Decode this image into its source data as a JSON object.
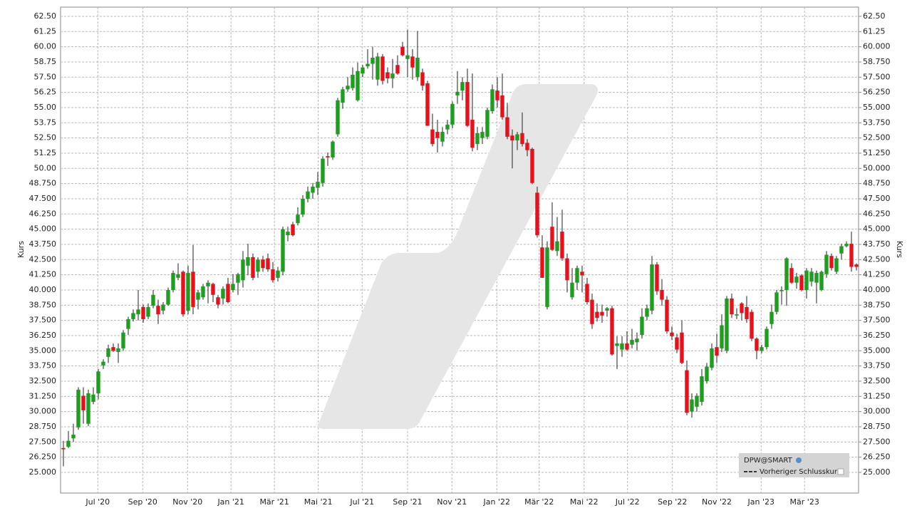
{
  "chart_data": {
    "type": "candlestick",
    "y_label": "Kurs",
    "y2_label": "Kurs",
    "up_color": "#1e9e1e",
    "down_color": "#e8101a",
    "grid": true,
    "legend": {
      "title": "DPW@SMART",
      "line_label": "Vorheriger Schlusskurs"
    },
    "xlim": [
      -0.57,
      159.43
    ],
    "xticks": [
      {
        "value": 6.9,
        "label": "Jul '20"
      },
      {
        "value": 15.9,
        "label": "Sep '20"
      },
      {
        "value": 24.9,
        "label": "Nov '20"
      },
      {
        "value": 33.6,
        "label": "Jan '21"
      },
      {
        "value": 42.3,
        "label": "Mär '21"
      },
      {
        "value": 51.1,
        "label": "Mai '21"
      },
      {
        "value": 59.9,
        "label": "Jul '21"
      },
      {
        "value": 69,
        "label": "Sep '21"
      },
      {
        "value": 77.9,
        "label": "Nov '21"
      },
      {
        "value": 86.9,
        "label": "Jan '22"
      },
      {
        "value": 95.4,
        "label": "Mär '22"
      },
      {
        "value": 104.4,
        "label": "Mai '22"
      },
      {
        "value": 113.1,
        "label": "Jul '22"
      },
      {
        "value": 122.1,
        "label": "Sep '22"
      },
      {
        "value": 131,
        "label": "Nov '22"
      },
      {
        "value": 139.9,
        "label": "Jan '23"
      },
      {
        "value": 148.6,
        "label": "Mär '23"
      }
    ],
    "ylim": [
      23.3,
      63.26
    ],
    "yticks": [
      {
        "value": 62.5,
        "label": "62.50"
      },
      {
        "value": 61.25,
        "label": "61.25"
      },
      {
        "value": 60,
        "label": "60.00"
      },
      {
        "value": 58.75,
        "label": "58.75"
      },
      {
        "value": 57.5,
        "label": "57.50"
      },
      {
        "value": 56.25,
        "label": "56.25"
      },
      {
        "value": 55,
        "label": "55.00"
      },
      {
        "value": 53.75,
        "label": "53.75"
      },
      {
        "value": 52.5,
        "label": "52.50"
      },
      {
        "value": 51.25,
        "label": "51.25"
      },
      {
        "value": 50,
        "label": "50.00"
      },
      {
        "value": 48.75,
        "label": "48.750"
      },
      {
        "value": 47.5,
        "label": "47.500"
      },
      {
        "value": 46.25,
        "label": "46.250"
      },
      {
        "value": 45,
        "label": "45.000"
      },
      {
        "value": 43.75,
        "label": "43.750"
      },
      {
        "value": 42.5,
        "label": "42.500"
      },
      {
        "value": 41.25,
        "label": "41.250"
      },
      {
        "value": 40,
        "label": "40.000"
      },
      {
        "value": 38.75,
        "label": "38.750"
      },
      {
        "value": 37.5,
        "label": "37.500"
      },
      {
        "value": 36.25,
        "label": "36.250"
      },
      {
        "value": 35,
        "label": "35.000"
      },
      {
        "value": 33.75,
        "label": "33.750"
      },
      {
        "value": 32.5,
        "label": "32.500"
      },
      {
        "value": 31.25,
        "label": "31.250"
      },
      {
        "value": 30,
        "label": "30.000"
      },
      {
        "value": 28.75,
        "label": "28.750"
      },
      {
        "value": 27.5,
        "label": "27.500"
      },
      {
        "value": 26.25,
        "label": "26.250"
      },
      {
        "value": 25,
        "label": "25.000"
      }
    ],
    "y2lim": [
      23.3,
      63.26
    ],
    "y2ticks": [
      {
        "value": 62.5,
        "label": "62.50"
      },
      {
        "value": 61.25,
        "label": "61.25"
      },
      {
        "value": 60,
        "label": "60.000"
      },
      {
        "value": 58.75,
        "label": "58.750"
      },
      {
        "value": 57.5,
        "label": "57.500"
      },
      {
        "value": 56.25,
        "label": "56.250"
      },
      {
        "value": 55,
        "label": "55.000"
      },
      {
        "value": 53.75,
        "label": "53.750"
      },
      {
        "value": 52.5,
        "label": "52.500"
      },
      {
        "value": 51.25,
        "label": "51.250"
      },
      {
        "value": 50,
        "label": "50.000"
      },
      {
        "value": 48.75,
        "label": "48.750"
      },
      {
        "value": 47.5,
        "label": "47.500"
      },
      {
        "value": 46.25,
        "label": "46.250"
      },
      {
        "value": 45,
        "label": "45.000"
      },
      {
        "value": 43.75,
        "label": "43.750"
      },
      {
        "value": 42.5,
        "label": "42.500"
      },
      {
        "value": 41.25,
        "label": "41.250"
      },
      {
        "value": 40,
        "label": "40.000"
      },
      {
        "value": 38.75,
        "label": "38.750"
      },
      {
        "value": 37.5,
        "label": "37.500"
      },
      {
        "value": 36.25,
        "label": "36.250"
      },
      {
        "value": 35,
        "label": "35.000"
      },
      {
        "value": 33.75,
        "label": "33.750"
      },
      {
        "value": 32.5,
        "label": "32.500"
      },
      {
        "value": 31.25,
        "label": "31.250"
      },
      {
        "value": 30,
        "label": "30.000"
      },
      {
        "value": 28.75,
        "label": "28.750"
      },
      {
        "value": 27.5,
        "label": "27.500"
      },
      {
        "value": 26.25,
        "label": "26.250"
      },
      {
        "value": 25,
        "label": "25.000"
      }
    ],
    "ohlc": [
      [
        27.0,
        27.6,
        25.5,
        26.9
      ],
      [
        27.1,
        28.4,
        27.0,
        27.6
      ],
      [
        27.8,
        29.0,
        27.5,
        28.1
      ],
      [
        28.7,
        32.0,
        28.5,
        31.8
      ],
      [
        31.3,
        32.0,
        29.0,
        30.1
      ],
      [
        29.0,
        31.8,
        28.8,
        31.5
      ],
      [
        30.8,
        32.0,
        30.6,
        31.4
      ],
      [
        31.5,
        33.5,
        31.0,
        33.3
      ],
      [
        33.8,
        34.3,
        33.5,
        34.1
      ],
      [
        34.5,
        35.5,
        34.0,
        35.2
      ],
      [
        35.3,
        35.6,
        34.9,
        35.0
      ],
      [
        34.9,
        35.6,
        34.0,
        35.2
      ],
      [
        35.2,
        36.7,
        35.0,
        36.5
      ],
      [
        36.8,
        37.8,
        36.3,
        37.6
      ],
      [
        37.6,
        38.4,
        37.4,
        38.1
      ],
      [
        38.0,
        40.0,
        37.5,
        38.4
      ],
      [
        38.6,
        38.8,
        37.3,
        37.6
      ],
      [
        37.8,
        38.9,
        37.6,
        38.6
      ],
      [
        38.7,
        40.0,
        38.5,
        39.6
      ],
      [
        38.7,
        39.2,
        37.2,
        38.0
      ],
      [
        38.3,
        39.0,
        38.0,
        38.8
      ],
      [
        38.8,
        40.2,
        38.7,
        40.0
      ],
      [
        40.0,
        41.6,
        39.8,
        41.4
      ],
      [
        41.0,
        42.2,
        40.8,
        41.3
      ],
      [
        41.5,
        41.6,
        37.8,
        38.0
      ],
      [
        38.3,
        42.0,
        38.0,
        41.4
      ],
      [
        41.5,
        43.7,
        38.0,
        38.6
      ],
      [
        39.2,
        40.0,
        38.4,
        39.8
      ],
      [
        39.4,
        40.5,
        39.2,
        40.3
      ],
      [
        40.3,
        40.8,
        38.9,
        40.6
      ],
      [
        40.5,
        40.6,
        39.0,
        39.6
      ],
      [
        39.4,
        39.6,
        38.5,
        38.8
      ],
      [
        39.3,
        40.3,
        38.8,
        40.1
      ],
      [
        40.5,
        41.0,
        38.9,
        39.0
      ],
      [
        40.0,
        41.3,
        39.8,
        40.5
      ],
      [
        40.6,
        41.4,
        39.6,
        41.3
      ],
      [
        40.8,
        43.2,
        40.2,
        42.5
      ],
      [
        42.0,
        43.8,
        41.2,
        42.7
      ],
      [
        42.7,
        43.0,
        40.8,
        41.0
      ],
      [
        41.5,
        42.7,
        41.0,
        42.5
      ],
      [
        42.5,
        42.8,
        41.5,
        41.8
      ],
      [
        42.6,
        43.0,
        41.5,
        41.7
      ],
      [
        41.7,
        42.3,
        40.6,
        40.8
      ],
      [
        41.0,
        41.9,
        40.7,
        41.6
      ],
      [
        41.5,
        45.2,
        41.2,
        45.0
      ],
      [
        44.5,
        45.2,
        44.0,
        44.8
      ],
      [
        45.4,
        45.6,
        44.4,
        44.5
      ],
      [
        45.5,
        46.8,
        45.3,
        46.2
      ],
      [
        46.2,
        47.8,
        46.0,
        47.5
      ],
      [
        47.5,
        48.5,
        47.2,
        48.1
      ],
      [
        48.0,
        48.8,
        47.5,
        48.5
      ],
      [
        48.4,
        49.7,
        47.8,
        48.9
      ],
      [
        48.8,
        51.0,
        48.5,
        50.8
      ],
      [
        51.0,
        51.3,
        50.2,
        50.9
      ],
      [
        50.9,
        52.3,
        50.7,
        52.2
      ],
      [
        52.8,
        55.8,
        52.6,
        55.6
      ],
      [
        55.4,
        56.7,
        54.9,
        56.5
      ],
      [
        56.5,
        57.5,
        56.3,
        56.8
      ],
      [
        56.6,
        58.3,
        56.4,
        57.7
      ],
      [
        55.6,
        58.7,
        55.5,
        58.0
      ],
      [
        57.8,
        58.5,
        57.5,
        58.3
      ],
      [
        58.4,
        59.8,
        58.2,
        58.6
      ],
      [
        58.6,
        60.0,
        57.3,
        59.1
      ],
      [
        57.3,
        59.5,
        56.8,
        59.2
      ],
      [
        59.2,
        59.4,
        56.9,
        57.2
      ],
      [
        57.9,
        58.3,
        57.0,
        57.4
      ],
      [
        57.4,
        59.0,
        56.6,
        57.8
      ],
      [
        58.5,
        59.3,
        57.7,
        57.8
      ],
      [
        60.0,
        60.4,
        59.2,
        59.3
      ],
      [
        59.0,
        61.4,
        57.5,
        59.3
      ],
      [
        59.2,
        59.8,
        57.3,
        58.3
      ],
      [
        57.5,
        61.3,
        57.2,
        59.1
      ],
      [
        57.9,
        58.2,
        56.4,
        56.8
      ],
      [
        57.0,
        57.2,
        53.5,
        53.5
      ],
      [
        53.2,
        54.5,
        51.8,
        52.0
      ],
      [
        53.0,
        54.0,
        51.3,
        52.5
      ],
      [
        52.2,
        53.4,
        51.8,
        53.0
      ],
      [
        53.2,
        54.0,
        52.8,
        53.6
      ],
      [
        53.6,
        55.5,
        53.3,
        55.3
      ],
      [
        56.0,
        58.0,
        55.3,
        56.3
      ],
      [
        56.4,
        57.5,
        55.6,
        57.1
      ],
      [
        57.1,
        58.2,
        53.4,
        53.5
      ],
      [
        54.0,
        57.8,
        51.4,
        51.7
      ],
      [
        52.0,
        53.4,
        51.5,
        52.9
      ],
      [
        52.5,
        53.4,
        52.0,
        53.0
      ],
      [
        52.6,
        55.0,
        52.4,
        54.8
      ],
      [
        54.7,
        56.9,
        54.5,
        56.5
      ],
      [
        56.4,
        57.5,
        55.0,
        55.6
      ],
      [
        56.0,
        57.8,
        54.0,
        54.2
      ],
      [
        54.2,
        55.4,
        52.4,
        52.6
      ],
      [
        52.7,
        53.2,
        50.0,
        52.3
      ],
      [
        52.3,
        53.0,
        51.5,
        52.8
      ],
      [
        52.9,
        54.6,
        51.8,
        52.0
      ],
      [
        52.1,
        52.4,
        51.0,
        51.5
      ],
      [
        51.6,
        51.7,
        48.7,
        48.8
      ],
      [
        48.0,
        48.5,
        44.3,
        44.5
      ],
      [
        43.5,
        44.5,
        41.0,
        41.0
      ],
      [
        38.6,
        44.0,
        38.4,
        43.5
      ],
      [
        45.2,
        47.2,
        43.2,
        43.3
      ],
      [
        43.2,
        46.0,
        42.8,
        44.0
      ],
      [
        44.8,
        46.6,
        42.4,
        42.6
      ],
      [
        42.6,
        43.0,
        39.8,
        40.8
      ],
      [
        39.4,
        41.8,
        39.2,
        40.6
      ],
      [
        40.6,
        42.0,
        40.0,
        41.8
      ],
      [
        41.5,
        42.0,
        39.8,
        41.2
      ],
      [
        40.5,
        41.0,
        38.8,
        39.0
      ],
      [
        39.2,
        39.7,
        36.8,
        37.2
      ],
      [
        38.2,
        38.9,
        37.4,
        37.7
      ],
      [
        38.2,
        38.8,
        37.3,
        37.9
      ],
      [
        38.3,
        38.6,
        37.8,
        38.5
      ],
      [
        38.5,
        38.7,
        34.6,
        34.7
      ],
      [
        35.4,
        36.2,
        33.5,
        35.6
      ],
      [
        35.1,
        36.2,
        34.5,
        35.6
      ],
      [
        35.6,
        36.6,
        35.0,
        35.1
      ],
      [
        35.5,
        36.8,
        35.2,
        35.9
      ],
      [
        35.7,
        36.5,
        35.0,
        36.0
      ],
      [
        36.3,
        38.5,
        36.0,
        37.8
      ],
      [
        37.8,
        38.8,
        37.5,
        38.5
      ],
      [
        38.3,
        42.8,
        38.0,
        42.1
      ],
      [
        42.1,
        42.3,
        39.6,
        39.9
      ],
      [
        40.0,
        40.9,
        38.7,
        39.2
      ],
      [
        39.2,
        39.5,
        36.4,
        36.6
      ],
      [
        36.5,
        37.0,
        35.9,
        36.2
      ],
      [
        36.1,
        36.4,
        34.8,
        35.1
      ],
      [
        36.5,
        37.5,
        33.9,
        34.0
      ],
      [
        33.4,
        34.2,
        29.7,
        29.9
      ],
      [
        30.0,
        31.5,
        29.5,
        31.0
      ],
      [
        30.4,
        31.5,
        30.0,
        31.3
      ],
      [
        30.8,
        33.5,
        30.5,
        32.9
      ],
      [
        32.5,
        34.0,
        32.3,
        33.7
      ],
      [
        33.6,
        35.6,
        33.4,
        35.2
      ],
      [
        35.3,
        36.4,
        34.0,
        34.6
      ],
      [
        35.2,
        38.0,
        34.9,
        37.1
      ],
      [
        35.0,
        39.5,
        34.8,
        39.3
      ],
      [
        39.3,
        39.7,
        37.7,
        38.0
      ],
      [
        37.9,
        38.5,
        37.6,
        38.0
      ],
      [
        38.9,
        39.0,
        37.5,
        38.1
      ],
      [
        38.6,
        39.5,
        37.3,
        37.6
      ],
      [
        38.2,
        38.4,
        35.8,
        36.0
      ],
      [
        36.0,
        36.1,
        34.3,
        35.0
      ],
      [
        35.0,
        35.5,
        34.8,
        35.3
      ],
      [
        35.3,
        37.0,
        35.1,
        36.8
      ],
      [
        37.2,
        38.8,
        36.8,
        38.2
      ],
      [
        38.2,
        40.0,
        38.0,
        39.8
      ],
      [
        39.9,
        40.3,
        38.8,
        40.0
      ],
      [
        40.0,
        42.7,
        38.7,
        42.6
      ],
      [
        41.8,
        42.2,
        40.5,
        40.6
      ],
      [
        40.6,
        41.4,
        40.1,
        41.1
      ],
      [
        41.2,
        41.3,
        39.9,
        40.0
      ],
      [
        40.0,
        41.8,
        39.3,
        41.6
      ],
      [
        40.7,
        41.8,
        40.3,
        41.5
      ],
      [
        40.6,
        41.6,
        38.9,
        41.4
      ],
      [
        40.0,
        41.6,
        39.9,
        41.5
      ],
      [
        41.3,
        43.2,
        41.0,
        42.9
      ],
      [
        42.8,
        43.0,
        41.6,
        41.8
      ],
      [
        41.5,
        42.8,
        41.3,
        42.6
      ],
      [
        43.0,
        43.8,
        42.5,
        43.6
      ],
      [
        43.6,
        44.0,
        43.5,
        43.8
      ],
      [
        43.8,
        44.8,
        41.5,
        41.9
      ],
      [
        42.1,
        42.2,
        41.6,
        41.9
      ]
    ]
  }
}
